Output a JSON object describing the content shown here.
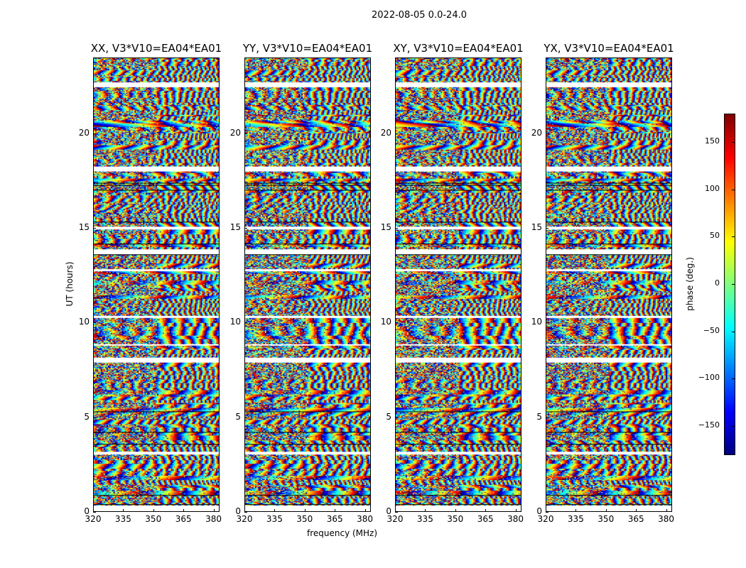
{
  "chart_data": {
    "type": "heatmap",
    "suptitle": "2022-08-05 0.0-24.0",
    "xlabel": "frequency (MHz)",
    "ylabel": "UT (hours)",
    "xlim": [
      320,
      383
    ],
    "ylim": [
      0,
      24
    ],
    "xticks": [
      "320",
      "335",
      "350",
      "365",
      "380"
    ],
    "xtick_values": [
      320,
      335,
      350,
      365,
      380
    ],
    "yticks": [
      "0",
      "5",
      "10",
      "15",
      "20"
    ],
    "ytick_values": [
      0,
      5,
      10,
      15,
      20
    ],
    "panels": [
      {
        "title": "XX, V3*V10=EA04*EA01"
      },
      {
        "title": "YY, V3*V10=EA04*EA01"
      },
      {
        "title": "XY, V3*V10=EA04*EA01"
      },
      {
        "title": "YX, V3*V10=EA04*EA01"
      }
    ],
    "colorbar": {
      "label": "phase (deg.)",
      "range": [
        -180,
        180
      ],
      "colormap": "jet",
      "ticks": [
        "150",
        "100",
        "50",
        "0",
        "−50",
        "−100",
        "−150"
      ],
      "tick_values": [
        150,
        100,
        50,
        0,
        -50,
        -100,
        -150
      ]
    },
    "flagged_color": "#ffffff"
  }
}
